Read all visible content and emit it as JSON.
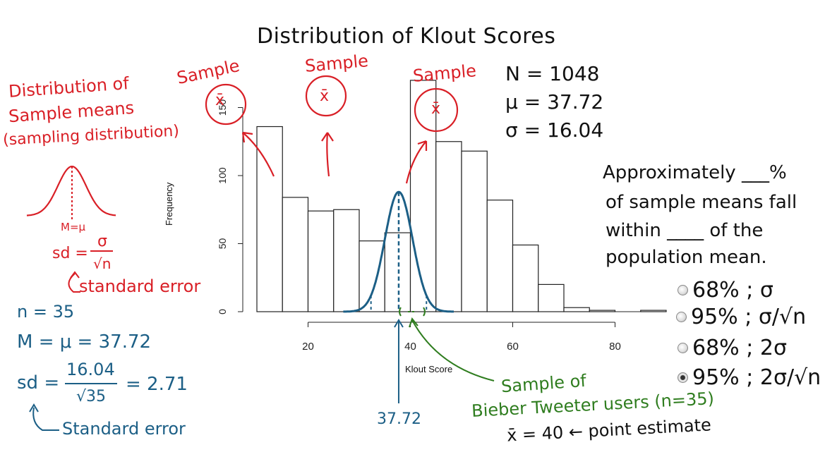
{
  "chart_data": {
    "type": "bar",
    "title": "Distribution of Klout Scores",
    "xlabel": "Klout Score",
    "ylabel": "Frequency",
    "xlim": [
      10,
      90
    ],
    "ylim": [
      0,
      160
    ],
    "x_ticks": [
      20,
      40,
      60,
      80
    ],
    "y_ticks": [
      0,
      50,
      100,
      150
    ],
    "bins": [
      {
        "from": 10,
        "to": 15,
        "value": 136
      },
      {
        "from": 15,
        "to": 20,
        "value": 84
      },
      {
        "from": 20,
        "to": 25,
        "value": 74
      },
      {
        "from": 25,
        "to": 30,
        "value": 75
      },
      {
        "from": 30,
        "to": 35,
        "value": 52
      },
      {
        "from": 35,
        "to": 40,
        "value": 58
      },
      {
        "from": 40,
        "to": 45,
        "value": 170
      },
      {
        "from": 45,
        "to": 50,
        "value": 125
      },
      {
        "from": 50,
        "to": 55,
        "value": 118
      },
      {
        "from": 55,
        "to": 60,
        "value": 82
      },
      {
        "from": 60,
        "to": 65,
        "value": 49
      },
      {
        "from": 65,
        "to": 70,
        "value": 20
      },
      {
        "from": 70,
        "to": 75,
        "value": 3
      },
      {
        "from": 75,
        "to": 80,
        "value": 1
      },
      {
        "from": 80,
        "to": 85,
        "value": 0
      },
      {
        "from": 85,
        "to": 90,
        "value": 1
      }
    ],
    "sampling_curve": {
      "mean": 37.72,
      "sd": 2.71,
      "peak": 88
    }
  },
  "annotations": {
    "stats": [
      "N = 1048",
      "μ = 37.72",
      "σ = 16.04"
    ],
    "sample_label": "Sample",
    "xbar": "x̄",
    "sampling_title": [
      "Distribution of",
      "Sample means",
      "(sampling distribution)"
    ],
    "curve_label": "M=μ",
    "sd_formula_prefix": "sd =",
    "sd_formula_num": "σ",
    "sd_formula_den": "√n",
    "standard_error": "standard error",
    "n_line": "n = 35",
    "m_line": "M = μ = 37.72",
    "sd_prefix": "sd =",
    "sd_num": "16.04",
    "sd_den": "√35",
    "sd_result": "= 2.71",
    "standard_error_blue": "Standard error",
    "mean_label": "37.72",
    "sample_of": "Sample of",
    "bieber": "Bieber Tweeter users (n=35)",
    "point_estimate": "x̄ = 40 ← point estimate",
    "question": [
      "Approximately ___%",
      "of sample means fall",
      "within ____ of the",
      "population mean."
    ],
    "choices": [
      "68% ; σ",
      "95% ; σ/√n",
      "68% ; 2σ",
      "95% ; 2σ/√n"
    ]
  }
}
